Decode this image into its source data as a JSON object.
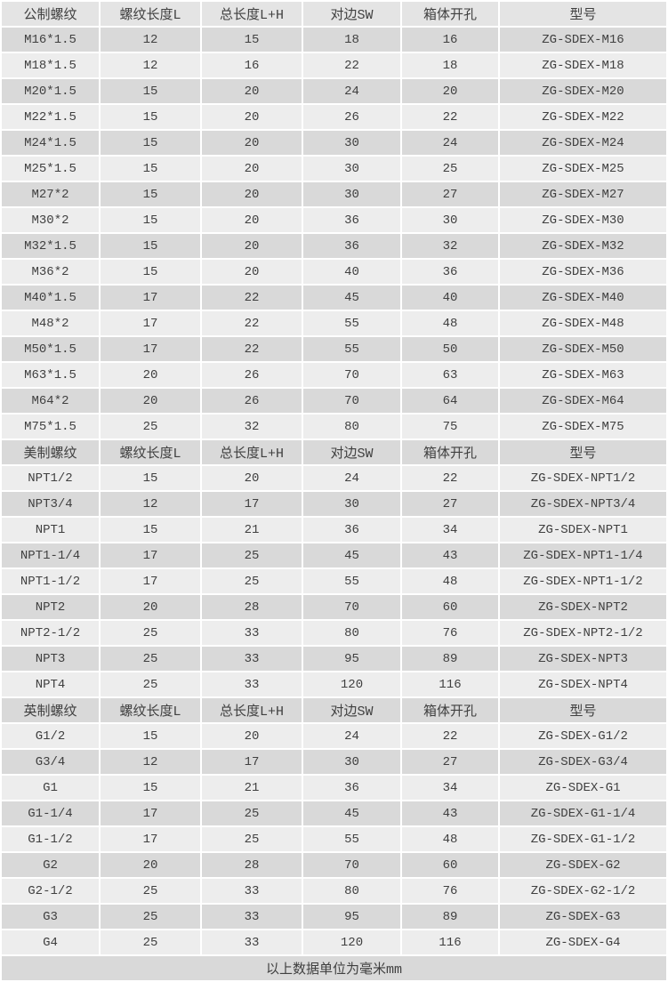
{
  "page": {
    "description": "Specification table for ZG-SDEX cable gland models in metric, NPT and G thread sizes",
    "footer_note": "以上数据单位为毫米mm"
  },
  "colors": {
    "header_first_bg": "#e4e4e4",
    "section_header_bg": "#d9d9d9",
    "row_light_bg": "#ededed",
    "row_dark_bg": "#d9d9d9",
    "gap_border": "#ffffff",
    "text": "#404040"
  },
  "chart_data": {
    "type": "table",
    "unit_note": "以上数据单位为毫米mm",
    "sections": [
      {
        "name": "metric-thread",
        "headers": [
          "公制螺纹",
          "螺纹长度L",
          "总长度L+H",
          "对边SW",
          "箱体开孔",
          "型号"
        ],
        "rows": [
          [
            "M16*1.5",
            "12",
            "15",
            "18",
            "16",
            "ZG-SDEX-M16"
          ],
          [
            "M18*1.5",
            "12",
            "16",
            "22",
            "18",
            "ZG-SDEX-M18"
          ],
          [
            "M20*1.5",
            "15",
            "20",
            "24",
            "20",
            "ZG-SDEX-M20"
          ],
          [
            "M22*1.5",
            "15",
            "20",
            "26",
            "22",
            "ZG-SDEX-M22"
          ],
          [
            "M24*1.5",
            "15",
            "20",
            "30",
            "24",
            "ZG-SDEX-M24"
          ],
          [
            "M25*1.5",
            "15",
            "20",
            "30",
            "25",
            "ZG-SDEX-M25"
          ],
          [
            "M27*2",
            "15",
            "20",
            "30",
            "27",
            "ZG-SDEX-M27"
          ],
          [
            "M30*2",
            "15",
            "20",
            "36",
            "30",
            "ZG-SDEX-M30"
          ],
          [
            "M32*1.5",
            "15",
            "20",
            "36",
            "32",
            "ZG-SDEX-M32"
          ],
          [
            "M36*2",
            "15",
            "20",
            "40",
            "36",
            "ZG-SDEX-M36"
          ],
          [
            "M40*1.5",
            "17",
            "22",
            "45",
            "40",
            "ZG-SDEX-M40"
          ],
          [
            "M48*2",
            "17",
            "22",
            "55",
            "48",
            "ZG-SDEX-M48"
          ],
          [
            "M50*1.5",
            "17",
            "22",
            "55",
            "50",
            "ZG-SDEX-M50"
          ],
          [
            "M63*1.5",
            "20",
            "26",
            "70",
            "63",
            "ZG-SDEX-M63"
          ],
          [
            "M64*2",
            "20",
            "26",
            "70",
            "64",
            "ZG-SDEX-M64"
          ],
          [
            "M75*1.5",
            "25",
            "32",
            "80",
            "75",
            "ZG-SDEX-M75"
          ]
        ]
      },
      {
        "name": "us-thread",
        "headers": [
          "美制螺纹",
          "螺纹长度L",
          "总长度L+H",
          "对边SW",
          "箱体开孔",
          "型号"
        ],
        "rows": [
          [
            "NPT1/2",
            "15",
            "20",
            "24",
            "22",
            "ZG-SDEX-NPT1/2"
          ],
          [
            "NPT3/4",
            "12",
            "17",
            "30",
            "27",
            "ZG-SDEX-NPT3/4"
          ],
          [
            "NPT1",
            "15",
            "21",
            "36",
            "34",
            "ZG-SDEX-NPT1"
          ],
          [
            "NPT1-1/4",
            "17",
            "25",
            "45",
            "43",
            "ZG-SDEX-NPT1-1/4"
          ],
          [
            "NPT1-1/2",
            "17",
            "25",
            "55",
            "48",
            "ZG-SDEX-NPT1-1/2"
          ],
          [
            "NPT2",
            "20",
            "28",
            "70",
            "60",
            "ZG-SDEX-NPT2"
          ],
          [
            "NPT2-1/2",
            "25",
            "33",
            "80",
            "76",
            "ZG-SDEX-NPT2-1/2"
          ],
          [
            "NPT3",
            "25",
            "33",
            "95",
            "89",
            "ZG-SDEX-NPT3"
          ],
          [
            "NPT4",
            "25",
            "33",
            "120",
            "116",
            "ZG-SDEX-NPT4"
          ]
        ]
      },
      {
        "name": "british-thread",
        "headers": [
          "英制螺纹",
          "螺纹长度L",
          "总长度L+H",
          "对边SW",
          "箱体开孔",
          "型号"
        ],
        "rows": [
          [
            "G1/2",
            "15",
            "20",
            "24",
            "22",
            "ZG-SDEX-G1/2"
          ],
          [
            "G3/4",
            "12",
            "17",
            "30",
            "27",
            "ZG-SDEX-G3/4"
          ],
          [
            "G1",
            "15",
            "21",
            "36",
            "34",
            "ZG-SDEX-G1"
          ],
          [
            "G1-1/4",
            "17",
            "25",
            "45",
            "43",
            "ZG-SDEX-G1-1/4"
          ],
          [
            "G1-1/2",
            "17",
            "25",
            "55",
            "48",
            "ZG-SDEX-G1-1/2"
          ],
          [
            "G2",
            "20",
            "28",
            "70",
            "60",
            "ZG-SDEX-G2"
          ],
          [
            "G2-1/2",
            "25",
            "33",
            "80",
            "76",
            "ZG-SDEX-G2-1/2"
          ],
          [
            "G3",
            "25",
            "33",
            "95",
            "89",
            "ZG-SDEX-G3"
          ],
          [
            "G4",
            "25",
            "33",
            "120",
            "116",
            "ZG-SDEX-G4"
          ]
        ]
      }
    ]
  }
}
